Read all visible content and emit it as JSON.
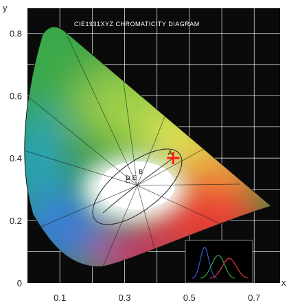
{
  "chart_data": {
    "type": "scatter",
    "title": "CIE1931XYZ CHROMATICITY DIAGRAM",
    "xlabel": "x",
    "ylabel": "y",
    "x_ticks": [
      "0.1",
      "0.3",
      "0.5",
      "0.7"
    ],
    "y_ticks": [
      "0",
      "0.2",
      "0.4",
      "0.6",
      "0.8"
    ],
    "xlim": [
      0,
      0.78
    ],
    "ylim": [
      0,
      0.88
    ],
    "grid": true,
    "background": "#0a0a0a",
    "marker": {
      "x": 0.45,
      "y": 0.4,
      "shape": "plus",
      "color": "#ff1a1a"
    },
    "point_labels": [
      {
        "text": "A",
        "x": 0.44,
        "y": 0.41
      },
      {
        "text": "B",
        "x": 0.35,
        "y": 0.35
      },
      {
        "text": "C",
        "x": 0.31,
        "y": 0.32
      },
      {
        "text": "D",
        "x": 0.31,
        "y": 0.33
      },
      {
        "text": "E",
        "x": 0.33,
        "y": 0.33
      }
    ]
  }
}
